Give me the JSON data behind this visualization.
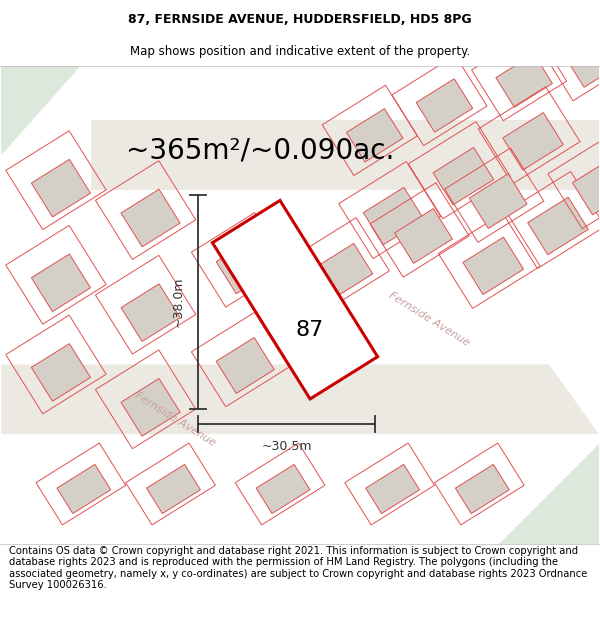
{
  "title_line1": "87, FERNSIDE AVENUE, HUDDERSFIELD, HD5 8PG",
  "title_line2": "Map shows position and indicative extent of the property.",
  "area_text": "~365m²/~0.090ac.",
  "dim_height": "~38.0m",
  "dim_width": "~30.5m",
  "property_label": "87",
  "footer": "Contains OS data © Crown copyright and database right 2021. This information is subject to Crown copyright and database rights 2023 and is reproduced with the permission of HM Land Registry. The polygons (including the associated geometry, namely x, y co-ordinates) are subject to Crown copyright and database rights 2023 Ordnance Survey 100026316.",
  "bg_map_color": "#f5f3ee",
  "bg_green_color": "#dce8dc",
  "plot_outline_color": "#e05050",
  "plot_fill_color": "#ffffff",
  "highlighted_outline_color": "#cc0000",
  "building_fill": "#d4d0c8",
  "building_edge": "#e8b0b0",
  "road_label_color": "#c8a0a0",
  "dimension_color": "#333333",
  "title_color": "#000000",
  "footer_color": "#000000",
  "footer_fontsize": 7.2,
  "title_fontsize": 9.0,
  "subtitle_fontsize": 8.5,
  "area_fontsize": 20,
  "dim_label_fontsize": 9,
  "property_label_fontsize": 16
}
